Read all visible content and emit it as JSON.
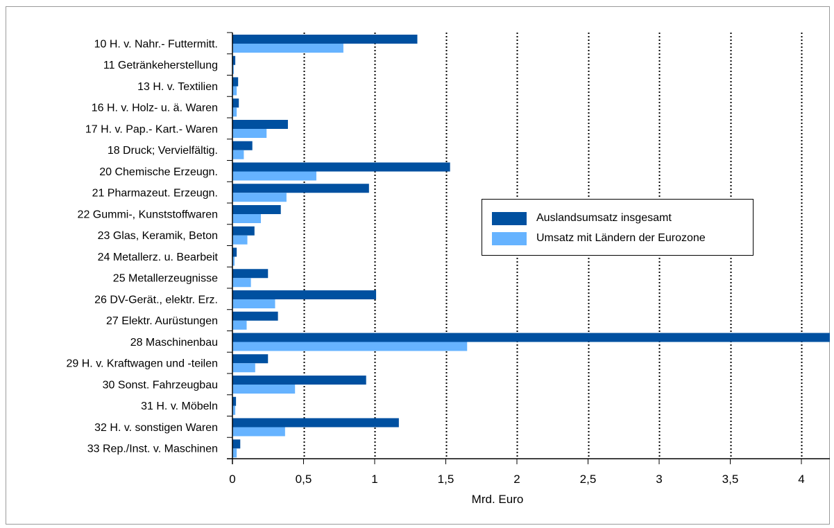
{
  "chart_data": {
    "type": "bar",
    "orientation": "horizontal",
    "categories": [
      "10  H. v. Nahr.- Futtermitt.",
      "11  Getränkeherstellung",
      "13  H. v. Textilien",
      "16  H. v. Holz- u. ä. Waren",
      "17  H. v. Pap.- Kart.- Waren",
      "18  Druck; Vervielfältig.",
      "20  Chemische Erzeugn.",
      "21  Pharmazeut. Erzeugn.",
      "22  Gummi-, Kunststoffwaren",
      "23  Glas, Keramik, Beton",
      "24  Metallerz. u. Bearbeit",
      "25  Metallerzeugnisse",
      "26  DV-Gerät., elektr. Erz.",
      "27  Elektr. Aurüstungen",
      "28  Maschinenbau",
      "29  H. v. Kraftwagen und -teilen",
      "30  Sonst. Fahrzeugbau",
      "31  H. v. Möbeln",
      "32  H. v. sonstigen Waren",
      "33  Rep./Inst. v. Maschinen"
    ],
    "series": [
      {
        "name": "Auslandsumsatz insgesamt",
        "color": "#0050a0",
        "values": [
          1.3,
          0.02,
          0.04,
          0.045,
          0.39,
          0.14,
          1.53,
          0.96,
          0.34,
          0.155,
          0.03,
          0.25,
          1.01,
          0.32,
          4.2,
          0.25,
          0.94,
          0.025,
          1.17,
          0.055
        ]
      },
      {
        "name": "Umsatz mit Ländern der Eurozone",
        "color": "#66b3ff",
        "values": [
          0.78,
          0.01,
          0.03,
          0.03,
          0.24,
          0.08,
          0.59,
          0.38,
          0.2,
          0.105,
          0.015,
          0.13,
          0.3,
          0.1,
          1.65,
          0.16,
          0.44,
          0.02,
          0.37,
          0.03
        ]
      }
    ],
    "xlabel": "Mrd. Euro",
    "ylabel": "",
    "xlim": [
      0,
      4.2
    ],
    "xticks": [
      0,
      0.5,
      1,
      1.5,
      2,
      2.5,
      3,
      3.5,
      4
    ],
    "xtick_labels": [
      "0",
      "0,5",
      "1",
      "1,5",
      "2",
      "2,5",
      "3",
      "3,5",
      "4"
    ],
    "grid": "vertical dotted",
    "legend_position": "center-right"
  }
}
